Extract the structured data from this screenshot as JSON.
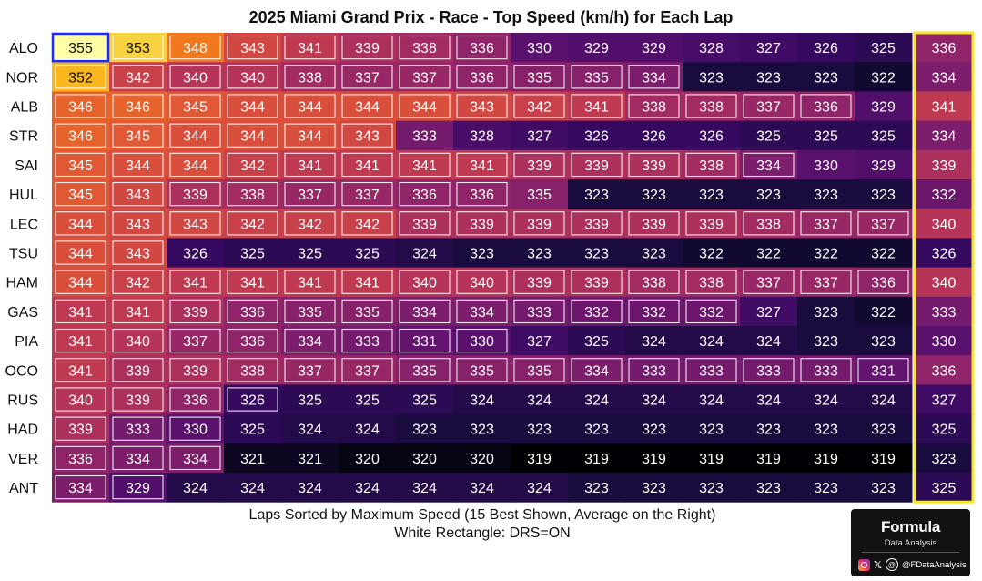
{
  "chart_data": {
    "type": "heatmap",
    "title": "2025 Miami Grand Prix - Race - Top Speed (km/h) for Each Lap",
    "xlabel": "Laps Sorted by Maximum Speed (15 Best Shown, Average on the Right)",
    "note": "White Rectangle: DRS=ON",
    "value_range": [
      319,
      355
    ],
    "colormap": "inferno-like",
    "drivers": [
      "ALO",
      "NOR",
      "ALB",
      "STR",
      "SAI",
      "HUL",
      "LEC",
      "TSU",
      "HAM",
      "GAS",
      "PIA",
      "OCO",
      "RUS",
      "HAD",
      "VER",
      "ANT"
    ],
    "values": [
      [
        355,
        353,
        348,
        343,
        341,
        339,
        338,
        336,
        330,
        329,
        329,
        328,
        327,
        326,
        325
      ],
      [
        352,
        342,
        340,
        340,
        338,
        337,
        337,
        336,
        335,
        335,
        334,
        323,
        323,
        323,
        322
      ],
      [
        346,
        346,
        345,
        344,
        344,
        344,
        344,
        343,
        342,
        341,
        338,
        338,
        337,
        336,
        329
      ],
      [
        346,
        345,
        344,
        344,
        344,
        343,
        333,
        328,
        327,
        326,
        326,
        326,
        325,
        325,
        325
      ],
      [
        345,
        344,
        344,
        342,
        341,
        341,
        341,
        341,
        339,
        339,
        339,
        338,
        334,
        330,
        329
      ],
      [
        345,
        343,
        339,
        338,
        337,
        337,
        336,
        336,
        335,
        323,
        323,
        323,
        323,
        323,
        323
      ],
      [
        344,
        343,
        343,
        342,
        342,
        342,
        339,
        339,
        339,
        339,
        339,
        339,
        338,
        337,
        337
      ],
      [
        344,
        343,
        326,
        325,
        325,
        325,
        324,
        323,
        323,
        323,
        323,
        322,
        322,
        322,
        322
      ],
      [
        344,
        342,
        341,
        341,
        341,
        341,
        340,
        340,
        339,
        339,
        338,
        338,
        337,
        337,
        336
      ],
      [
        341,
        341,
        339,
        336,
        335,
        335,
        334,
        334,
        333,
        332,
        332,
        332,
        327,
        323,
        322
      ],
      [
        341,
        340,
        337,
        336,
        334,
        333,
        331,
        330,
        327,
        325,
        324,
        324,
        324,
        323,
        323
      ],
      [
        341,
        339,
        339,
        338,
        337,
        337,
        335,
        335,
        335,
        334,
        333,
        333,
        333,
        333,
        331
      ],
      [
        340,
        339,
        336,
        326,
        325,
        325,
        325,
        324,
        324,
        324,
        324,
        324,
        324,
        324,
        324
      ],
      [
        339,
        333,
        330,
        325,
        324,
        324,
        323,
        323,
        323,
        323,
        323,
        323,
        323,
        323,
        323
      ],
      [
        336,
        334,
        334,
        321,
        321,
        320,
        320,
        320,
        319,
        319,
        319,
        319,
        319,
        319,
        319
      ],
      [
        334,
        329,
        324,
        324,
        324,
        324,
        324,
        324,
        324,
        323,
        323,
        323,
        323,
        323,
        323
      ]
    ],
    "drs": [
      [
        1,
        1,
        1,
        1,
        1,
        1,
        1,
        1,
        0,
        0,
        0,
        0,
        0,
        0,
        0
      ],
      [
        1,
        1,
        1,
        1,
        1,
        1,
        1,
        1,
        1,
        1,
        1,
        0,
        0,
        0,
        0
      ],
      [
        1,
        1,
        1,
        1,
        1,
        1,
        1,
        1,
        1,
        1,
        1,
        1,
        1,
        1,
        0
      ],
      [
        1,
        1,
        1,
        1,
        1,
        1,
        0,
        0,
        0,
        0,
        0,
        0,
        0,
        0,
        0
      ],
      [
        1,
        1,
        1,
        1,
        1,
        1,
        1,
        1,
        1,
        1,
        1,
        1,
        1,
        0,
        0
      ],
      [
        1,
        1,
        1,
        1,
        1,
        1,
        1,
        1,
        0,
        0,
        0,
        0,
        0,
        0,
        0
      ],
      [
        1,
        1,
        1,
        1,
        1,
        1,
        1,
        1,
        1,
        1,
        1,
        1,
        1,
        1,
        1
      ],
      [
        1,
        1,
        0,
        0,
        0,
        0,
        0,
        0,
        0,
        0,
        0,
        0,
        0,
        0,
        0
      ],
      [
        1,
        1,
        1,
        1,
        1,
        1,
        1,
        1,
        1,
        1,
        1,
        1,
        1,
        1,
        1
      ],
      [
        1,
        1,
        1,
        1,
        1,
        1,
        1,
        1,
        1,
        1,
        1,
        1,
        0,
        0,
        0
      ],
      [
        1,
        1,
        1,
        1,
        1,
        1,
        1,
        1,
        0,
        0,
        0,
        0,
        0,
        0,
        0
      ],
      [
        1,
        1,
        1,
        1,
        1,
        1,
        1,
        1,
        1,
        1,
        1,
        1,
        1,
        1,
        1
      ],
      [
        1,
        1,
        1,
        1,
        0,
        0,
        0,
        0,
        0,
        0,
        0,
        0,
        0,
        0,
        0
      ],
      [
        1,
        1,
        1,
        0,
        0,
        0,
        0,
        0,
        0,
        0,
        0,
        0,
        0,
        0,
        0
      ],
      [
        1,
        1,
        1,
        0,
        0,
        0,
        0,
        0,
        0,
        0,
        0,
        0,
        0,
        0,
        0
      ],
      [
        1,
        1,
        0,
        0,
        0,
        0,
        0,
        0,
        0,
        0,
        0,
        0,
        0,
        0,
        0
      ]
    ],
    "average": [
      336,
      334,
      341,
      334,
      339,
      332,
      340,
      326,
      340,
      333,
      330,
      336,
      327,
      325,
      323,
      325
    ],
    "highlight": {
      "row": 0,
      "col": 0,
      "color": "#1a2cff"
    },
    "average_border_color": "#f5e62a"
  },
  "branding": {
    "logo_text": "Formula",
    "logo_subtext": "Data Analysis",
    "handle": "@FDataAnalysis"
  }
}
